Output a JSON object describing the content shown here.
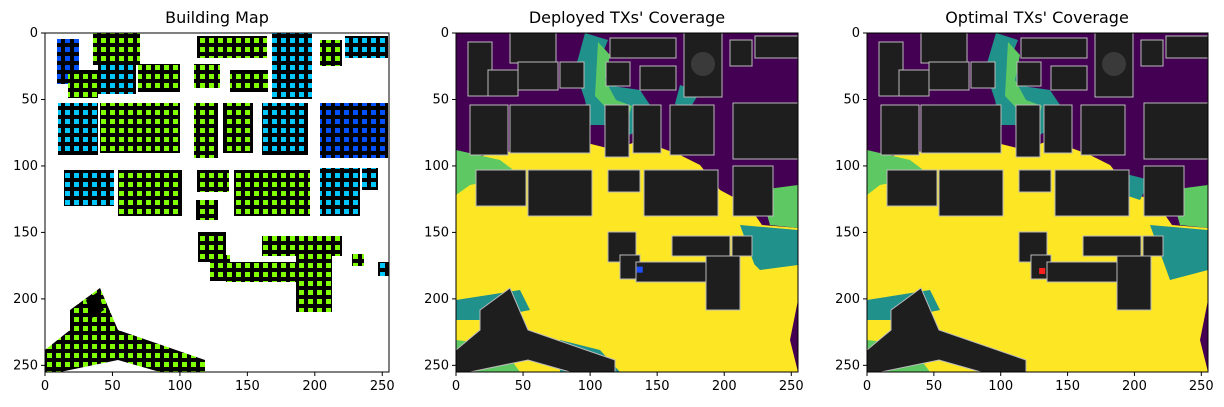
{
  "chart_data": [
    {
      "type": "heatmap",
      "title": "Building Map",
      "xlim": [
        0,
        255
      ],
      "ylim": [
        255,
        0
      ],
      "xticks": [
        0,
        50,
        100,
        150,
        200,
        250
      ],
      "yticks": [
        0,
        50,
        100,
        150,
        200,
        250
      ],
      "colors": {
        "background": "#ffffff",
        "building": "#000000",
        "roof_points": [
          "#7fff00",
          "#00c8ff",
          "#0050ff",
          "#c8ff00"
        ]
      }
    },
    {
      "type": "heatmap",
      "title": "Deployed TXs' Coverage",
      "xlim": [
        0,
        255
      ],
      "ylim": [
        255,
        0
      ],
      "xticks": [
        0,
        50,
        100,
        150,
        200,
        250
      ],
      "yticks": [
        0,
        50,
        100,
        150,
        200,
        250
      ],
      "transmitter": {
        "x": 137,
        "y": 178,
        "color": "#1f4fff"
      },
      "colors": {
        "low": "#440154",
        "mid": "#21918c",
        "high": "#5ec962",
        "max": "#fde725",
        "building": "#1e1e1e"
      }
    },
    {
      "type": "heatmap",
      "title": "Optimal TXs' Coverage",
      "xlim": [
        0,
        255
      ],
      "ylim": [
        255,
        0
      ],
      "xticks": [
        0,
        50,
        100,
        150,
        200,
        250
      ],
      "yticks": [
        0,
        50,
        100,
        150,
        200,
        250
      ],
      "transmitter": {
        "x": 131,
        "y": 179,
        "color": "#ff2020"
      },
      "colors": {
        "low": "#440154",
        "mid": "#21918c",
        "high": "#5ec962",
        "max": "#fde725",
        "building": "#1e1e1e"
      }
    }
  ]
}
